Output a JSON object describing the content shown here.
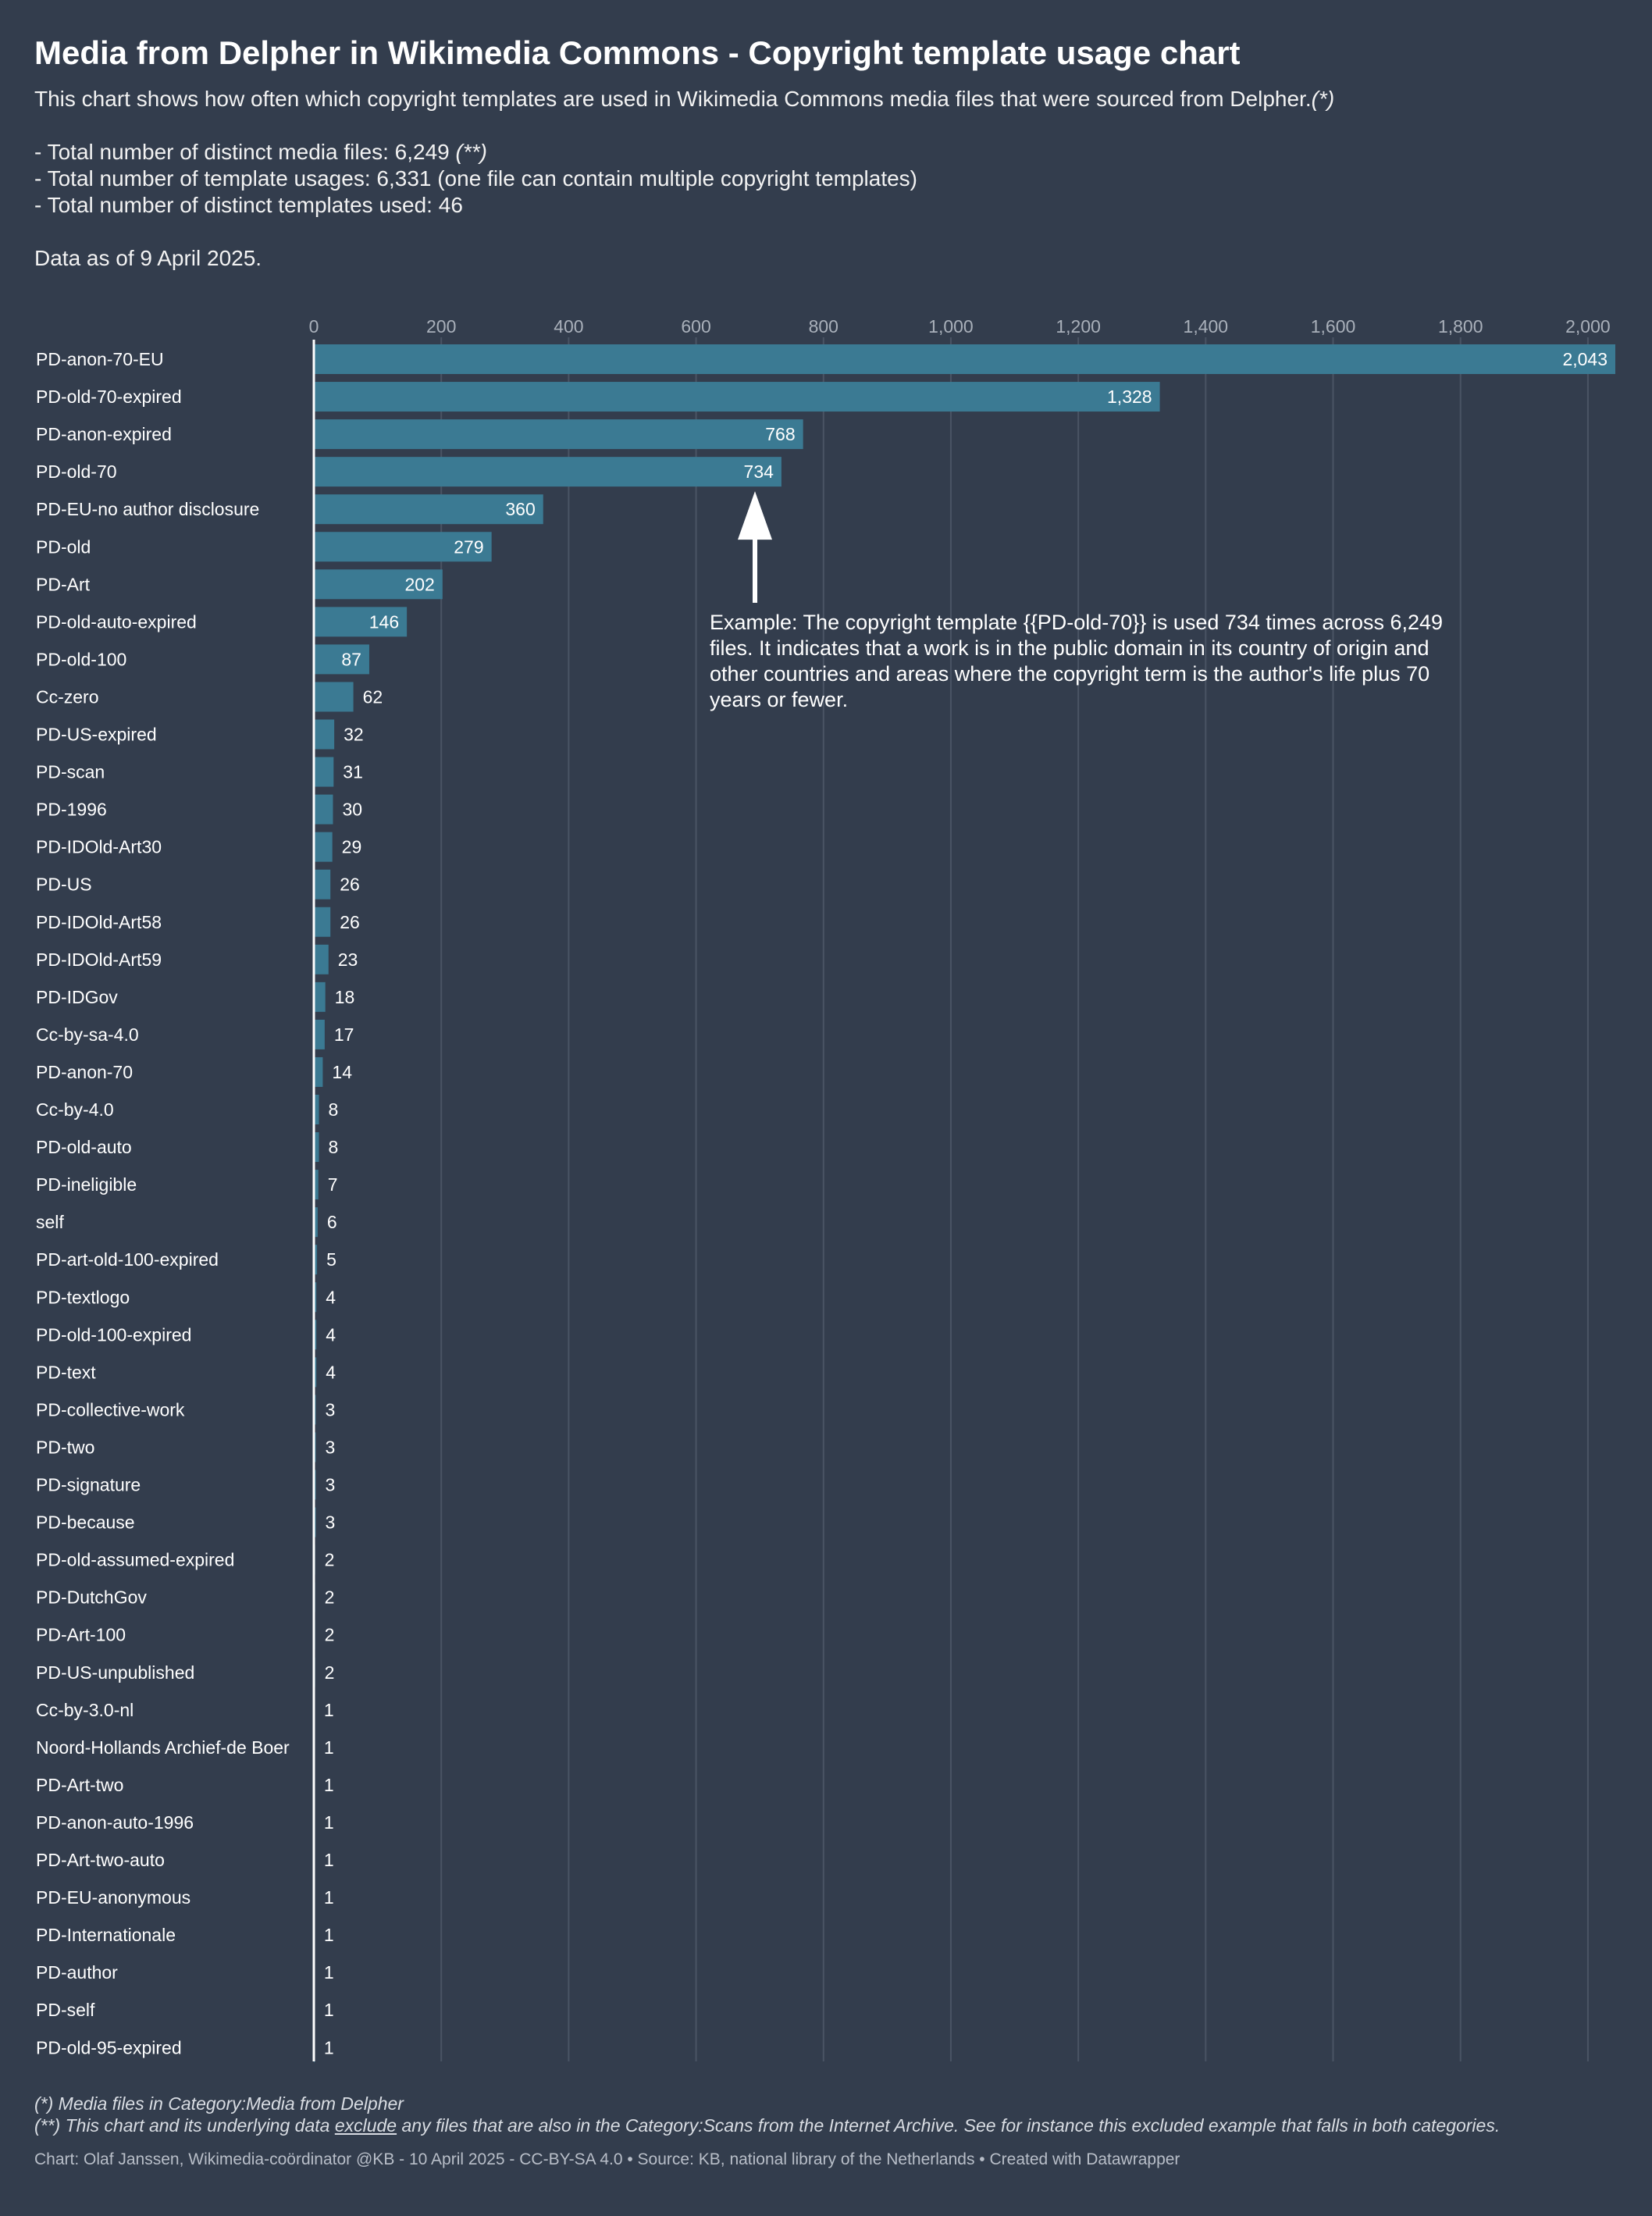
{
  "header": {
    "title": "Media from Delpher in Wikimedia Commons - Copyright template usage chart",
    "intro": "This chart shows how often which copyright templates are used in Wikimedia Commons media files that were sourced from Delpher.",
    "intro_mark": "(*)",
    "stat_files_prefix": "- Total number of distinct media files: 6,249 ",
    "stat_files_mark": "(**)",
    "stat_usages": "- Total number of template usages: 6,331 (one file can contain multiple copyright templates)",
    "stat_templates": "- Total number of distinct templates used: 46",
    "data_date": "Data as of 9 April 2025."
  },
  "chart_data": {
    "type": "bar",
    "orientation": "horizontal",
    "xlim": [
      0,
      2043
    ],
    "ticks": [
      0,
      200,
      400,
      600,
      800,
      1000,
      1200,
      1400,
      1600,
      1800,
      2000
    ],
    "tick_labels": [
      "0",
      "200",
      "400",
      "600",
      "800",
      "1,000",
      "1,200",
      "1,400",
      "1,600",
      "1,800",
      "2,000"
    ],
    "grid": true,
    "categories": [
      "PD-anon-70-EU",
      "PD-old-70-expired",
      "PD-anon-expired",
      "PD-old-70",
      "PD-EU-no author disclosure",
      "PD-old",
      "PD-Art",
      "PD-old-auto-expired",
      "PD-old-100",
      "Cc-zero",
      "PD-US-expired",
      "PD-scan",
      "PD-1996",
      "PD-IDOld-Art30",
      "PD-US",
      "PD-IDOld-Art58",
      "PD-IDOld-Art59",
      "PD-IDGov",
      "Cc-by-sa-4.0",
      "PD-anon-70",
      "Cc-by-4.0",
      "PD-old-auto",
      "PD-ineligible",
      "self",
      "PD-art-old-100-expired",
      "PD-textlogo",
      "PD-old-100-expired",
      "PD-text",
      "PD-collective-work",
      "PD-two",
      "PD-signature",
      "PD-because",
      "PD-old-assumed-expired",
      "PD-DutchGov",
      "PD-Art-100",
      "PD-US-unpublished",
      "Cc-by-3.0-nl",
      "Noord-Hollands Archief-de Boer",
      "PD-Art-two",
      "PD-anon-auto-1996",
      "PD-Art-two-auto",
      "PD-EU-anonymous",
      "PD-Internationale",
      "PD-author",
      "PD-self",
      "PD-old-95-expired"
    ],
    "values": [
      2043,
      1328,
      768,
      734,
      360,
      279,
      202,
      146,
      87,
      62,
      32,
      31,
      30,
      29,
      26,
      26,
      23,
      18,
      17,
      14,
      8,
      8,
      7,
      6,
      5,
      4,
      4,
      4,
      3,
      3,
      3,
      3,
      2,
      2,
      2,
      2,
      1,
      1,
      1,
      1,
      1,
      1,
      1,
      1,
      1,
      1
    ],
    "value_labels": [
      "2,043",
      "1,328",
      "768",
      "734",
      "360",
      "279",
      "202",
      "146",
      "87",
      "62",
      "32",
      "31",
      "30",
      "29",
      "26",
      "26",
      "23",
      "18",
      "17",
      "14",
      "8",
      "8",
      "7",
      "6",
      "5",
      "4",
      "4",
      "4",
      "3",
      "3",
      "3",
      "3",
      "2",
      "2",
      "2",
      "2",
      "1",
      "1",
      "1",
      "1",
      "1",
      "1",
      "1",
      "1",
      "1",
      "1"
    ],
    "annotation": {
      "target_category": "PD-old-70",
      "text_lines": [
        "Example: The copyright template {{PD-old-70}} is used 734 times across 6,249",
        "files. It indicates that a work is in the public domain in its country of origin and",
        "other countries and areas where the copyright term is the author's life plus 70",
        "years or fewer."
      ]
    }
  },
  "footer": {
    "note1": "(*) Media files in Category:Media from Delpher",
    "note2_prefix": "(**) This chart and its underlying data ",
    "note2_link": "exclude",
    "note2_suffix": " any files that are also in the Category:Scans from the Internet Archive. See for instance this excluded example that falls in both categories.",
    "credit": "Chart: Olaf Janssen, Wikimedia-coördinator @KB - 10 April 2025 - CC-BY-SA 4.0 • Source: KB, national library of the Netherlands • Created with Datawrapper"
  },
  "colors": {
    "background": "#333d4d",
    "bar": "#3b7a93",
    "text": "#ffffff",
    "axis_text": "#a9b0ba",
    "grid": "#4a5464"
  }
}
